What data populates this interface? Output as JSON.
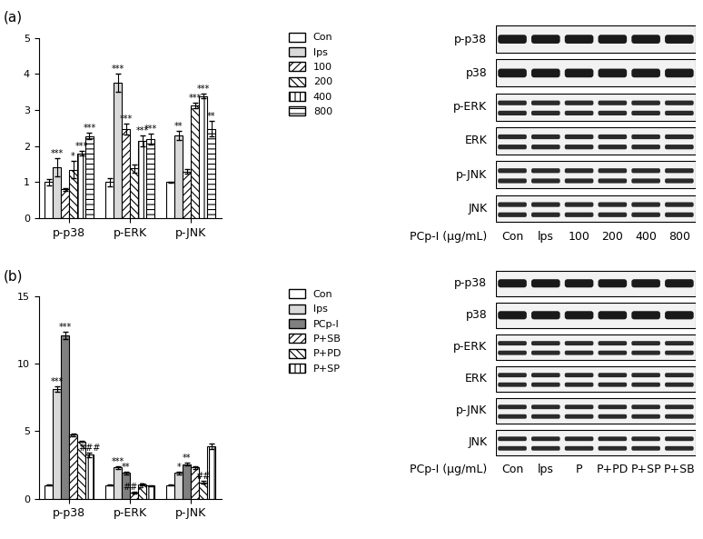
{
  "chart_data": [
    {
      "type": "bar",
      "panel_label": "(a)",
      "categories": [
        "p-p38",
        "p-ERK",
        "p-JNK"
      ],
      "ylim": [
        0,
        5
      ],
      "yticks": [
        0,
        1,
        2,
        3,
        4,
        5
      ],
      "grid": false,
      "legend": "upper left",
      "series": [
        {
          "name": "Con",
          "color": "#ffffff",
          "values": [
            1.0,
            1.0,
            1.0
          ],
          "errors": [
            0.08,
            0.12,
            0.02
          ],
          "annotations": [
            null,
            null,
            null
          ]
        },
        {
          "name": "lps",
          "color": "#d9d9d9",
          "values": [
            1.42,
            3.75,
            2.3
          ],
          "errors": [
            0.25,
            0.25,
            0.12
          ],
          "annotations": [
            "***",
            "***",
            "**"
          ]
        },
        {
          "name": "100",
          "color": "#ffffff",
          "values": [
            0.8,
            2.48,
            1.3
          ],
          "errors": [
            0.03,
            0.15,
            0.07
          ],
          "annotations": [
            null,
            "***",
            null
          ]
        },
        {
          "name": "200",
          "color": "#ffffff",
          "values": [
            1.35,
            1.38,
            3.12
          ],
          "errors": [
            0.25,
            0.12,
            0.08
          ],
          "annotations": [
            "*",
            null,
            "***"
          ]
        },
        {
          "name": "400",
          "color": "#ffffff",
          "values": [
            1.8,
            2.15,
            3.38
          ],
          "errors": [
            0.07,
            0.15,
            0.06
          ],
          "annotations": [
            "***",
            "***",
            "***"
          ]
        },
        {
          "name": "800",
          "color": "#ffffff",
          "values": [
            2.28,
            2.2,
            2.48
          ],
          "errors": [
            0.08,
            0.15,
            0.22
          ],
          "annotations": [
            "***",
            "***",
            "**"
          ]
        }
      ]
    },
    {
      "type": "bar",
      "panel_label": "(b)",
      "categories": [
        "p-p38",
        "p-ERK",
        "p-JNK"
      ],
      "ylim": [
        0,
        15
      ],
      "yticks": [
        0,
        5,
        10,
        15
      ],
      "grid": false,
      "legend": "upper left",
      "series": [
        {
          "name": "Con",
          "color": "#ffffff",
          "values": [
            1.0,
            1.0,
            1.0
          ],
          "errors": [
            0.05,
            0.05,
            0.05
          ],
          "annotations": [
            null,
            null,
            null
          ]
        },
        {
          "name": "lps",
          "color": "#d9d9d9",
          "values": [
            8.1,
            2.3,
            1.9
          ],
          "errors": [
            0.2,
            0.1,
            0.1
          ],
          "annotations": [
            "***",
            "***",
            "*"
          ]
        },
        {
          "name": "PCp-I",
          "color": "#808080",
          "values": [
            12.1,
            1.9,
            2.55
          ],
          "errors": [
            0.25,
            0.1,
            0.1
          ],
          "annotations": [
            "***",
            "**",
            "**"
          ]
        },
        {
          "name": "P+SB",
          "color": "#ffffff",
          "values": [
            4.75,
            0.45,
            2.3
          ],
          "errors": [
            0.1,
            0.05,
            0.1
          ],
          "annotations": [
            null,
            "###",
            null
          ]
        },
        {
          "name": "P+PD",
          "color": "#ffffff",
          "values": [
            4.25,
            1.05,
            1.2
          ],
          "errors": [
            0.05,
            0.05,
            0.1
          ],
          "annotations": [
            null,
            null,
            "##"
          ]
        },
        {
          "name": "P+SP",
          "color": "#ffffff",
          "values": [
            3.25,
            0.95,
            3.9
          ],
          "errors": [
            0.15,
            0.05,
            0.2
          ],
          "annotations": [
            "###",
            null,
            null
          ]
        }
      ]
    }
  ],
  "blots": [
    {
      "rows": [
        "p-p38",
        "p38",
        "p-ERK",
        "ERK",
        "p-JNK",
        "JNK"
      ],
      "axis_label": "PCp-I (µg/mL)",
      "lanes": [
        "Con",
        "lps",
        "100",
        "200",
        "400",
        "800"
      ]
    },
    {
      "rows": [
        "p-p38",
        "p38",
        "p-ERK",
        "ERK",
        "p-JNK",
        "JNK"
      ],
      "axis_label": "PCp-I (µg/mL)",
      "lanes": [
        "Con",
        "lps",
        "P",
        "P+PD",
        "P+SP",
        "P+SB"
      ]
    }
  ]
}
